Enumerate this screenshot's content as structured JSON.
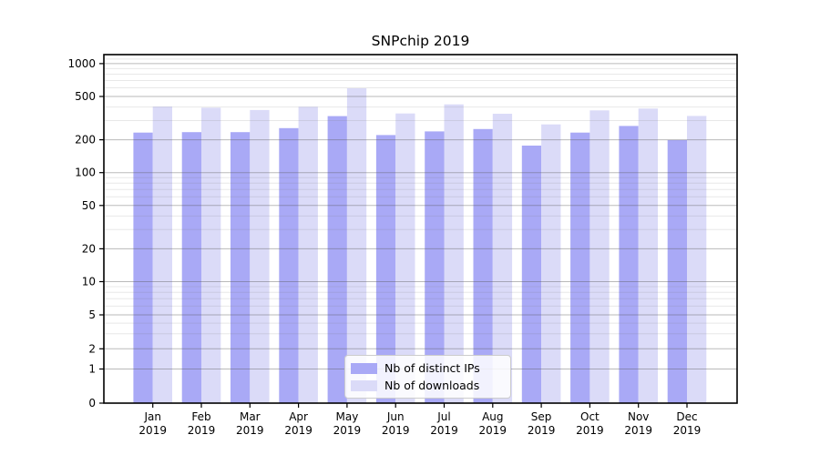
{
  "page": {
    "background": "#ffffff"
  },
  "chart_data": {
    "type": "bar",
    "title": "SNPchip 2019",
    "categories": [
      "Jan",
      "Feb",
      "Mar",
      "Apr",
      "May",
      "Jun",
      "Jul",
      "Aug",
      "Sep",
      "Oct",
      "Nov",
      "Dec"
    ],
    "category_year": "2019",
    "series": [
      {
        "name": "Nb of distinct IPs",
        "color": "#a9a9f6",
        "values": [
          233,
          235,
          235,
          256,
          330,
          221,
          239,
          251,
          177,
          233,
          268,
          199
        ]
      },
      {
        "name": "Nb of downloads",
        "color": "#dbdbf8",
        "values": [
          404,
          394,
          375,
          402,
          594,
          349,
          423,
          347,
          277,
          372,
          387,
          331
        ]
      }
    ],
    "y_axis": {
      "scale": "symlog",
      "tick_labels": [
        "0",
        "1",
        "2",
        "5",
        "10",
        "20",
        "50",
        "100",
        "200",
        "500",
        "1000"
      ],
      "tick_values": [
        0,
        1,
        2,
        5,
        10,
        20,
        50,
        100,
        200,
        500,
        1000
      ],
      "minor_tick_values": [
        3,
        4,
        6,
        7,
        8,
        9,
        30,
        40,
        60,
        70,
        80,
        90,
        300,
        400,
        600,
        700,
        800,
        900,
        1100,
        1200
      ],
      "ylim": [
        0,
        1200
      ]
    },
    "legend": {
      "location": "lower center"
    },
    "grid": {
      "shown": true,
      "major_color": "#bdbdbd",
      "minor_color": "#eaeaea"
    }
  }
}
